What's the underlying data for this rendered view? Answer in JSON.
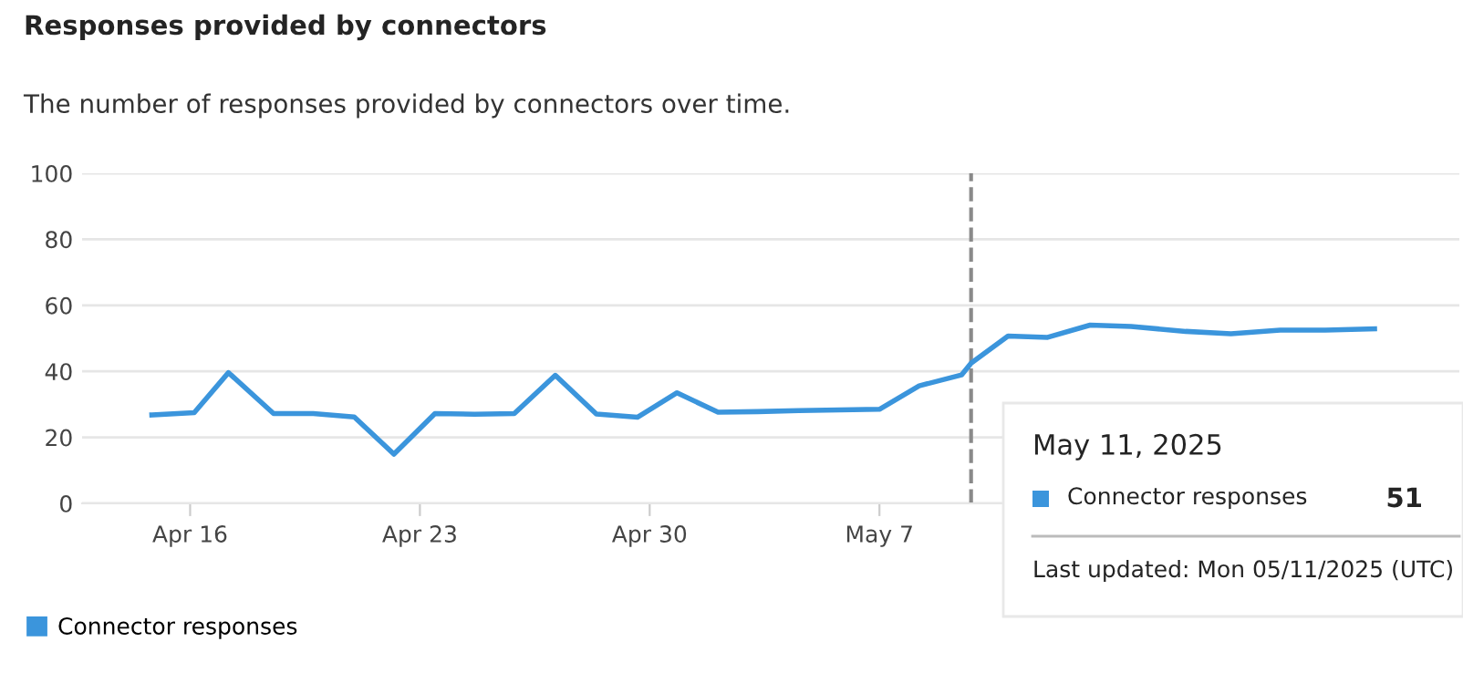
{
  "chart_data": {
    "type": "line",
    "title": "Responses provided by connectors",
    "subtitle": "The number of responses provided by connectors over time.",
    "x": [
      "2025-04-14T20:00",
      "2025-04-16T03:00",
      "2025-04-17T04:00",
      "2025-04-18T13:00",
      "2025-04-19T18:00",
      "2025-04-21T00:00",
      "2025-04-22T05:00",
      "2025-04-23T11:00",
      "2025-04-24T16:00",
      "2025-04-25T21:00",
      "2025-04-27T03:00",
      "2025-04-28T09:00",
      "2025-04-29T15:00",
      "2025-04-30T20:00",
      "2025-05-02T02:00",
      "2025-05-03T07:00",
      "2025-05-04T13:00",
      "2025-05-05T19:00",
      "2025-05-07T00:00",
      "2025-05-08T05:00",
      "2025-05-09T12:00",
      "2025-05-09T19:00",
      "2025-05-10T22:00",
      "2025-05-12T03:00",
      "2025-05-13T10:00",
      "2025-05-14T16:00",
      "2025-05-16T08:00",
      "2025-05-17T17:00",
      "2025-05-19T05:00",
      "2025-05-20T14:00",
      "2025-05-22T02:00"
    ],
    "series": [
      {
        "name": "Connector responses",
        "color": "#3b95dc",
        "values": [
          26.8,
          27.5,
          39.6,
          27.2,
          27.2,
          26.2,
          14.9,
          27.2,
          27.0,
          27.2,
          38.8,
          27.1,
          26.1,
          33.5,
          27.6,
          27.8,
          28.1,
          28.3,
          28.5,
          35.6,
          38.9,
          42.5,
          50.7,
          50.3,
          54.0,
          53.6,
          52.1,
          51.4,
          52.5,
          52.5,
          52.9
        ]
      }
    ],
    "xlim": [
      "2025-04-12T17:00",
      "2025-05-24T16:00"
    ],
    "xticks": [
      {
        "value": "2025-04-16",
        "label": "Apr 16"
      },
      {
        "value": "2025-04-23",
        "label": "Apr 23"
      },
      {
        "value": "2025-04-30",
        "label": "Apr 30"
      },
      {
        "value": "2025-05-07",
        "label": "May 7"
      }
    ],
    "ylim": [
      0,
      100
    ],
    "yticks": [
      0,
      20,
      40,
      60,
      80,
      100
    ],
    "grid": "y",
    "legend": "bottom left",
    "marker": "none",
    "line_style": "solid",
    "ref_lines": [
      {
        "axis": "x",
        "value": "2025-05-09T19:00",
        "color": "#8a8a8a",
        "line_style": "dashed"
      }
    ],
    "annotations": [
      "May 11, 2025",
      "Connector responses",
      "51",
      "Last updated: Mon 05/11/2025 (UTC)"
    ]
  }
}
